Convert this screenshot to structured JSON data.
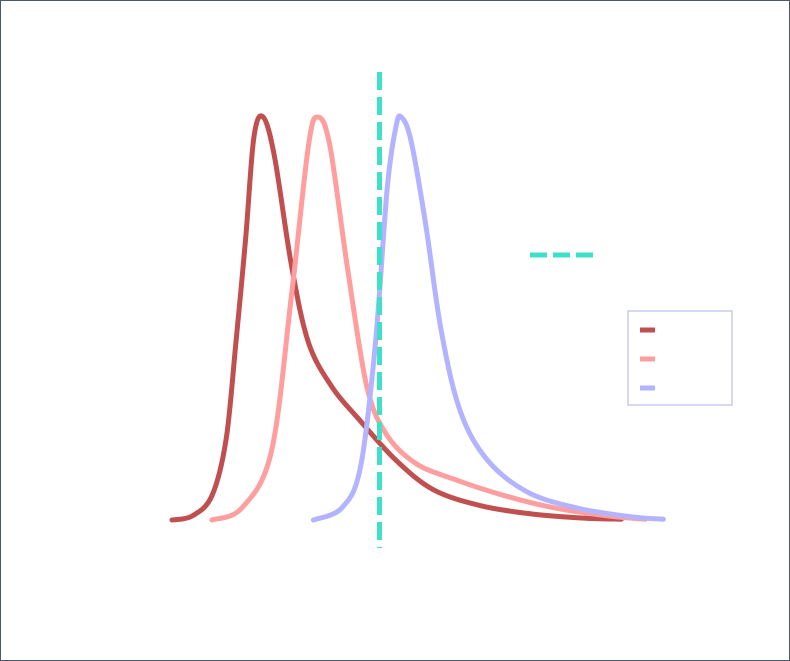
{
  "chart_data": {
    "type": "line",
    "title": "",
    "xlabel": "",
    "ylabel": "",
    "x_range": [
      0,
      1
    ],
    "y_range": [
      0,
      1
    ],
    "grid": false,
    "legend_position": "right",
    "series": [
      {
        "name": "",
        "color": "#c0504f",
        "points": [
          [
            0.0,
            0.0
          ],
          [
            0.037,
            0.01
          ],
          [
            0.073,
            0.06
          ],
          [
            0.099,
            0.2
          ],
          [
            0.117,
            0.44
          ],
          [
            0.135,
            0.7
          ],
          [
            0.15,
            0.95
          ],
          [
            0.167,
            1.0
          ],
          [
            0.188,
            0.9
          ],
          [
            0.219,
            0.63
          ],
          [
            0.25,
            0.44
          ],
          [
            0.293,
            0.33
          ],
          [
            0.339,
            0.255
          ],
          [
            0.409,
            0.15
          ],
          [
            0.479,
            0.075
          ],
          [
            0.567,
            0.035
          ],
          [
            0.659,
            0.015
          ],
          [
            0.75,
            0.005
          ],
          [
            0.823,
            0.002
          ]
        ]
      },
      {
        "name": "",
        "color": "#ff9e9e",
        "points": [
          [
            0.073,
            0.0
          ],
          [
            0.128,
            0.03
          ],
          [
            0.182,
            0.17
          ],
          [
            0.219,
            0.56
          ],
          [
            0.25,
            0.93
          ],
          [
            0.267,
            1.0
          ],
          [
            0.289,
            0.93
          ],
          [
            0.322,
            0.62
          ],
          [
            0.357,
            0.33
          ],
          [
            0.394,
            0.21
          ],
          [
            0.447,
            0.14
          ],
          [
            0.519,
            0.1
          ],
          [
            0.61,
            0.06
          ],
          [
            0.701,
            0.03
          ],
          [
            0.8,
            0.01
          ],
          [
            0.867,
            0.002
          ]
        ]
      },
      {
        "name": "",
        "color": "#b3b3ff",
        "points": [
          [
            0.259,
            0.0
          ],
          [
            0.311,
            0.03
          ],
          [
            0.345,
            0.13
          ],
          [
            0.372,
            0.43
          ],
          [
            0.394,
            0.82
          ],
          [
            0.41,
            0.975
          ],
          [
            0.42,
            1.0
          ],
          [
            0.438,
            0.94
          ],
          [
            0.465,
            0.73
          ],
          [
            0.493,
            0.47
          ],
          [
            0.528,
            0.27
          ],
          [
            0.577,
            0.15
          ],
          [
            0.65,
            0.07
          ],
          [
            0.741,
            0.03
          ],
          [
            0.841,
            0.008
          ],
          [
            0.9,
            0.002
          ]
        ]
      }
    ],
    "reference_line": {
      "x": 0.38,
      "style": "dashed",
      "color": "#3ee0c8",
      "label": ""
    },
    "legend": [
      {
        "label": "",
        "color": "#c0504f"
      },
      {
        "label": "",
        "color": "#ff9e9e"
      },
      {
        "label": "",
        "color": "#b3b3ff"
      }
    ],
    "reference_legend": {
      "label": "",
      "color": "#3ee0c8"
    },
    "frame_color": "#4a5a6e",
    "legend_border_color": "#c8c8f5"
  }
}
